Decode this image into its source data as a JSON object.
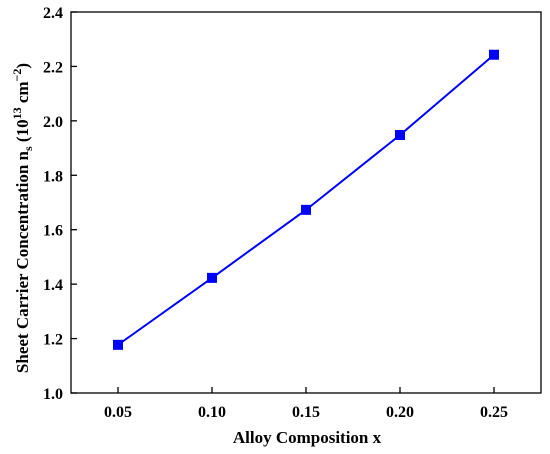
{
  "chart_data": {
    "type": "line",
    "xlabel": "Alloy Composition x",
    "ylabel": {
      "main": "Sheet Carrier Concentration n",
      "sub": "s",
      "unit_open": " (10",
      "unit_exp1": "13",
      "unit_mid": " cm",
      "unit_exp2": "−2",
      "unit_close": ")"
    },
    "xlim": [
      0.025,
      0.275
    ],
    "ylim": [
      1.0,
      2.4
    ],
    "xticks": [
      0.05,
      0.1,
      0.15,
      0.2,
      0.25
    ],
    "xtick_labels": [
      "0.05",
      "0.10",
      "0.15",
      "0.20",
      "0.25"
    ],
    "yticks": [
      1.0,
      1.2,
      1.4,
      1.6,
      1.8,
      2.0,
      2.2,
      2.4
    ],
    "ytick_labels": [
      "1.0",
      "1.2",
      "1.4",
      "1.6",
      "1.8",
      "2.0",
      "2.2",
      "2.4"
    ],
    "series": [
      {
        "x": [
          0.05,
          0.1,
          0.15,
          0.2,
          0.25
        ],
        "y": [
          1.177,
          1.423,
          1.673,
          1.948,
          2.243
        ],
        "color": "#0000ff",
        "marker": "square"
      }
    ],
    "grid": false
  }
}
